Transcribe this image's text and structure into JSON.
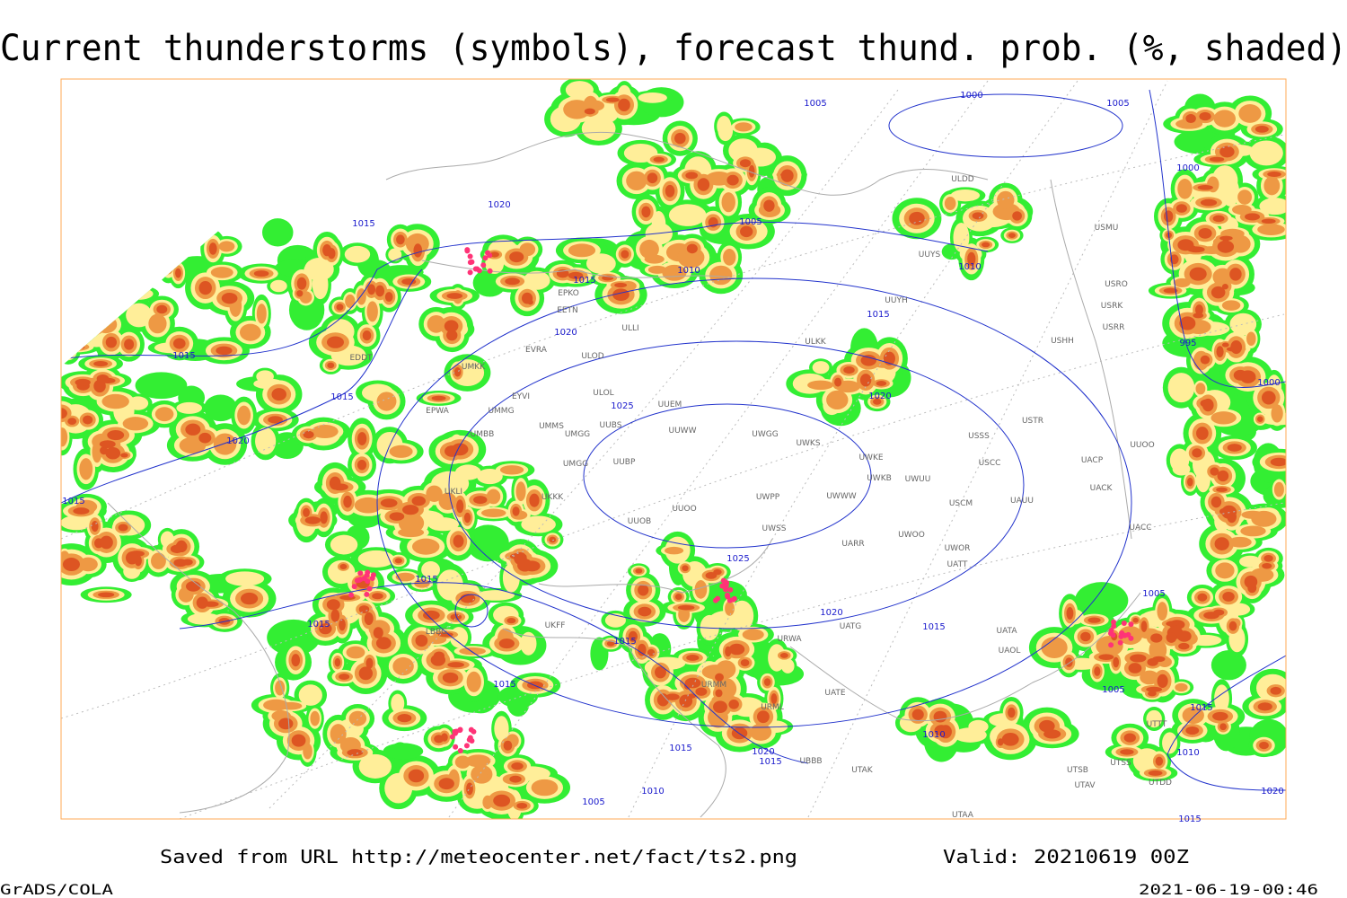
{
  "title": "Current thunderstorms (symbols), forecast thund. prob. (%, shaded)",
  "footer": {
    "source": "Saved from URL http://meteocenter.net/fact/ts2.png",
    "valid": "Valid: 20210619 00Z",
    "software": "GrADS/COLA",
    "timestamp": "2021-06-19-00:46"
  },
  "isobar_labels": [
    1000,
    1005,
    1005,
    1020,
    1015,
    1005,
    1010,
    1015,
    1010,
    1000,
    1015,
    995,
    1020,
    1015,
    1000,
    1015,
    1020,
    1025,
    1020,
    1015,
    1015,
    1025,
    1005,
    1020,
    1015,
    1015,
    1015,
    1015,
    1005,
    1015,
    1010,
    1015,
    1020,
    1015,
    1010,
    1005,
    1010,
    1020,
    1015
  ],
  "stations": [
    "ULDD",
    "USMU",
    "UUYS",
    "USRO",
    "UUYH",
    "USRK",
    "USRR",
    "USHH",
    "ULKK",
    "EPKO",
    "EETN",
    "EVRA",
    "ULOD",
    "UMKK",
    "EDDT",
    "ULOL",
    "EYVI",
    "UUEM",
    "EPWA",
    "UMMG",
    "UMMS",
    "UMGG",
    "UUBS",
    "UUWW",
    "UWGG",
    "UWKS",
    "USTR",
    "USSS",
    "UMBB",
    "UMGG",
    "UUBP",
    "UWKE",
    "UWKB",
    "UWUU",
    "USCC",
    "UACP",
    "UUOO",
    "ULLI",
    "UKKK",
    "UWPP",
    "UWWW",
    "USCM",
    "UAUU",
    "UACK",
    "UUOO",
    "UUOB",
    "UWSS",
    "UARR",
    "UWOO",
    "UWOR",
    "UACC",
    "UATT",
    "UATG",
    "URWA",
    "UATA",
    "UAOL",
    "UATE",
    "URML",
    "URMM",
    "UBBB",
    "UTAK",
    "UTSB",
    "UTSS",
    "UTAV",
    "UTDD",
    "UTAA",
    "UKLI",
    "LBBG",
    "UKFF",
    "UTTT"
  ]
}
